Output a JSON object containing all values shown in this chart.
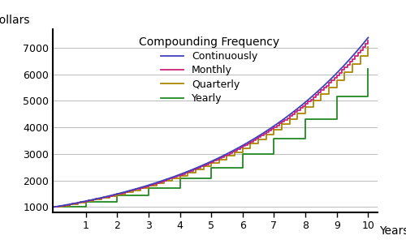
{
  "title": "Compounding Frequency",
  "xlabel": "Years",
  "ylabel": "Dollars",
  "principal": 1000,
  "rate": 0.2,
  "years": 10,
  "colors": {
    "continuously": "#4040bb",
    "monthly": "#cc2277",
    "quarterly": "#aa8800",
    "yearly": "#228822"
  },
  "legend_labels": [
    "Continuously",
    "Monthly",
    "Quarterly",
    "Yearly"
  ],
  "legend_keys": [
    "continuously",
    "monthly",
    "quarterly",
    "yearly"
  ],
  "ylim": [
    800,
    7700
  ],
  "xlim": [
    -0.05,
    10.3
  ],
  "yticks": [
    1000,
    2000,
    3000,
    4000,
    5000,
    6000,
    7000
  ],
  "xticks": [
    1,
    2,
    3,
    4,
    5,
    6,
    7,
    8,
    9,
    10
  ],
  "background_color": "#ffffff",
  "grid_color": "#bbbbbb",
  "linewidth": 1.3
}
